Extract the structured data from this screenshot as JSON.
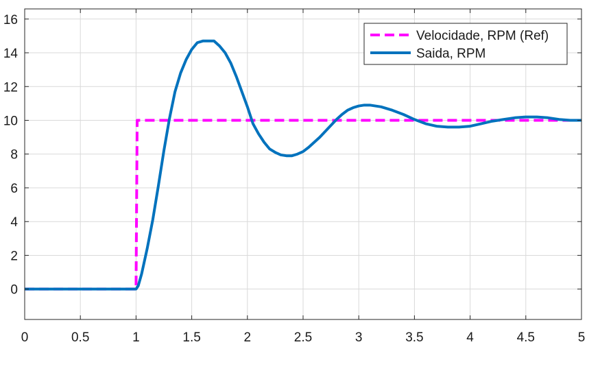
{
  "chart_data": {
    "type": "line",
    "title": "",
    "xlabel": "",
    "ylabel": "",
    "xlim": [
      0,
      5
    ],
    "ylim": [
      -1.8,
      16.6
    ],
    "xticks": [
      0,
      0.5,
      1,
      1.5,
      2,
      2.5,
      3,
      3.5,
      4,
      4.5,
      5
    ],
    "xtick_labels": [
      "0",
      "0.5",
      "1",
      "1.5",
      "2",
      "2.5",
      "3",
      "3.5",
      "4",
      "4.5",
      "5"
    ],
    "yticks": [
      0,
      2,
      4,
      6,
      8,
      10,
      12,
      14,
      16
    ],
    "ytick_labels": [
      "0",
      "2",
      "4",
      "6",
      "8",
      "10",
      "12",
      "14",
      "16"
    ],
    "grid": true,
    "legend_position": "top-right",
    "series": [
      {
        "name": "Velocidade, RPM (Ref)",
        "color": "#ff00ff",
        "style": "dashed",
        "x": [
          0,
          0.99,
          1.0,
          1.01,
          5
        ],
        "y": [
          0,
          0,
          0,
          10,
          10
        ]
      },
      {
        "name": "Saida, RPM",
        "color": "#0072bd",
        "style": "solid",
        "x": [
          0,
          1.0,
          1.02,
          1.05,
          1.1,
          1.15,
          1.2,
          1.25,
          1.3,
          1.35,
          1.4,
          1.45,
          1.5,
          1.55,
          1.6,
          1.65,
          1.7,
          1.75,
          1.8,
          1.85,
          1.9,
          1.95,
          2.0,
          2.05,
          2.1,
          2.15,
          2.2,
          2.25,
          2.3,
          2.35,
          2.4,
          2.45,
          2.5,
          2.55,
          2.6,
          2.65,
          2.7,
          2.75,
          2.8,
          2.85,
          2.9,
          2.95,
          3.0,
          3.05,
          3.1,
          3.15,
          3.2,
          3.3,
          3.4,
          3.5,
          3.6,
          3.7,
          3.8,
          3.9,
          4.0,
          4.1,
          4.2,
          4.3,
          4.4,
          4.5,
          4.6,
          4.7,
          4.8,
          4.9,
          5.0
        ],
        "y": [
          0,
          0,
          0.2,
          0.9,
          2.4,
          4.1,
          6.1,
          8.2,
          10.1,
          11.7,
          12.8,
          13.6,
          14.2,
          14.6,
          14.7,
          14.7,
          14.7,
          14.4,
          14.0,
          13.4,
          12.6,
          11.7,
          10.8,
          9.8,
          9.2,
          8.7,
          8.3,
          8.1,
          7.95,
          7.9,
          7.9,
          8.0,
          8.15,
          8.4,
          8.7,
          9.0,
          9.35,
          9.7,
          10.05,
          10.35,
          10.6,
          10.75,
          10.85,
          10.9,
          10.9,
          10.85,
          10.8,
          10.6,
          10.35,
          10.05,
          9.8,
          9.65,
          9.6,
          9.6,
          9.65,
          9.8,
          9.95,
          10.05,
          10.15,
          10.2,
          10.2,
          10.15,
          10.05,
          10.0,
          10.0
        ]
      }
    ]
  }
}
